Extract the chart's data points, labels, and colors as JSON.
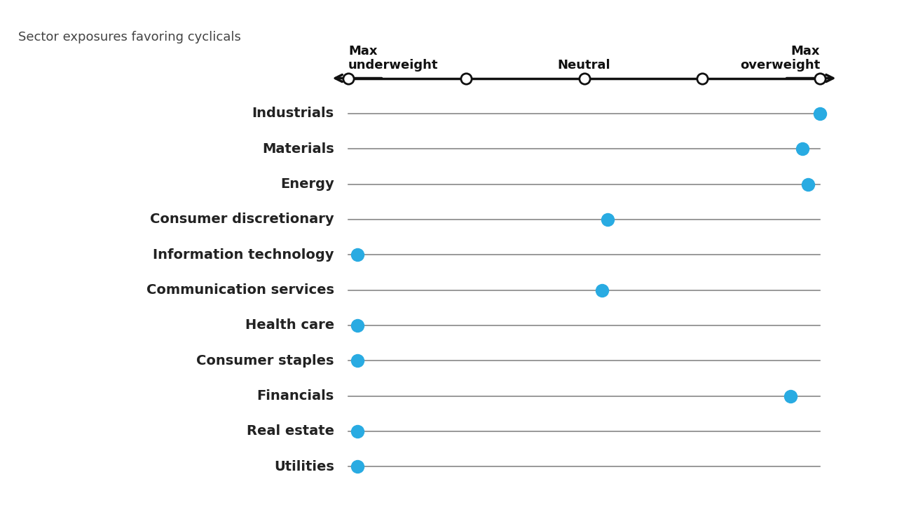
{
  "subtitle": "Sector exposures favoring cyclicals",
  "categories": [
    "Industrials",
    "Materials",
    "Energy",
    "Consumer discretionary",
    "Information technology",
    "Communication services",
    "Health care",
    "Consumer staples",
    "Financials",
    "Real estate",
    "Utilities"
  ],
  "dot_positions": [
    4.0,
    3.85,
    3.9,
    2.2,
    0.08,
    2.15,
    0.08,
    0.08,
    3.75,
    0.08,
    0.08
  ],
  "scale_min": 0,
  "scale_max": 4,
  "scale_ticks": [
    0,
    1,
    2,
    3,
    4
  ],
  "dot_color": "#29ABE2",
  "line_color": "#888888",
  "axis_color": "#111111",
  "bg_color": "#FFFFFF",
  "label_fontsize": 14,
  "subtitle_fontsize": 13,
  "tick_label_fontsize": 13
}
